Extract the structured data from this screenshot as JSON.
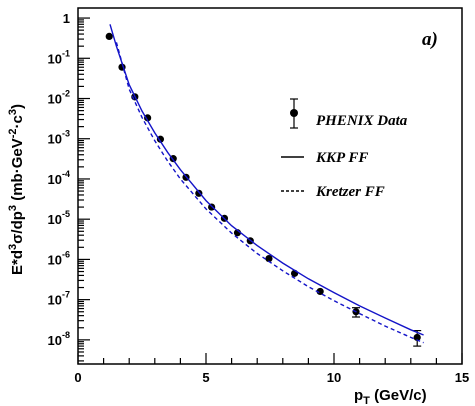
{
  "chart_data": {
    "type": "scatter",
    "title": "",
    "panel_label": "a)",
    "xlabel": {
      "main": "p",
      "sub": "T",
      "rest": " (GeV/c)"
    },
    "ylabel": {
      "p1": "E*d",
      "s1": "3",
      "p2": "σ/dp",
      "s2": "3",
      "p3": " (mb·GeV",
      "s3": "-2",
      "p4": "·c",
      "s4": "3",
      "p5": ")"
    },
    "xlim": [
      0,
      15
    ],
    "ylim_log10": [
      -8.6,
      0.25
    ],
    "x_ticks": [
      "0",
      "5",
      "10",
      "15"
    ],
    "y_ticks": [
      {
        "base": "1",
        "exp": ""
      },
      {
        "base": "10",
        "exp": "-1"
      },
      {
        "base": "10",
        "exp": "-2"
      },
      {
        "base": "10",
        "exp": "-3"
      },
      {
        "base": "10",
        "exp": "-4"
      },
      {
        "base": "10",
        "exp": "-5"
      },
      {
        "base": "10",
        "exp": "-6"
      },
      {
        "base": "10",
        "exp": "-7"
      },
      {
        "base": "10",
        "exp": "-8"
      }
    ],
    "legend_position": "right",
    "series": [
      {
        "name": "PHENIX Data",
        "style": "markers",
        "color": "#000000",
        "x": [
          1.22,
          1.72,
          2.22,
          2.72,
          3.22,
          3.72,
          4.22,
          4.72,
          5.22,
          5.72,
          6.23,
          6.73,
          7.46,
          8.46,
          9.46,
          10.86,
          13.25
        ],
        "y": [
          0.35,
          0.06,
          0.011,
          0.0033,
          0.00097,
          0.00032,
          0.00011,
          4.4e-05,
          2e-05,
          1.05e-05,
          4.6e-06,
          2.9e-06,
          1.05e-06,
          4.5e-07,
          1.6e-07,
          5e-08,
          1.15e-08
        ],
        "err_low": [
          null,
          null,
          null,
          null,
          null,
          null,
          null,
          null,
          null,
          null,
          null,
          null,
          null,
          null,
          null,
          3.7e-08,
          7e-09
        ],
        "err_high": [
          null,
          null,
          null,
          null,
          null,
          null,
          null,
          null,
          null,
          null,
          null,
          null,
          null,
          null,
          null,
          6.3e-08,
          1.7e-08
        ]
      },
      {
        "name": "KKP FF",
        "style": "solid",
        "color": "#1414c8",
        "x": [
          1.25,
          1.5,
          2,
          2.5,
          3,
          3.5,
          4,
          5,
          6,
          7,
          8,
          9,
          10,
          11,
          12,
          13,
          13.5
        ],
        "y": [
          0.7,
          0.2,
          0.022,
          0.0049,
          0.0014,
          0.00046,
          0.00017,
          2.9e-05,
          6.9e-06,
          2.2e-06,
          8.1e-07,
          3.3e-07,
          1.5e-07,
          7e-08,
          3.5e-08,
          1.78e-08,
          1.32e-08
        ]
      },
      {
        "name": "Kretzer FF",
        "style": "dashed",
        "color": "#1414c8",
        "x": [
          1.5,
          2,
          2.5,
          3,
          3.5,
          4,
          5,
          6,
          7,
          8,
          9,
          10,
          11,
          12,
          13,
          13.5
        ],
        "y": [
          0.25,
          0.017,
          0.0034,
          0.00089,
          0.00028,
          0.0001,
          1.8e-05,
          4.5e-06,
          1.4e-06,
          5.2e-07,
          2.1e-07,
          9.4e-08,
          4.5e-08,
          2.2e-08,
          1.15e-08,
          8.5e-09
        ]
      }
    ]
  }
}
